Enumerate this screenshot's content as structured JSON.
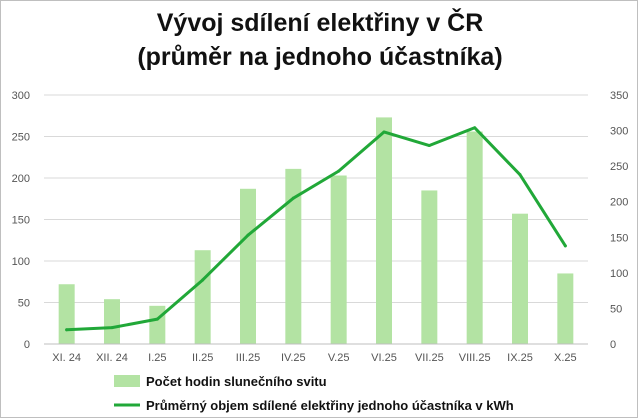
{
  "chart_data": {
    "type": "bar+line",
    "title_line1": "Vývoj sdílení elektřiny v ČR",
    "title_line2": "(průměr na jednoho účastníka)",
    "categories": [
      "XI. 24",
      "XII. 24",
      "I.25",
      "II.25",
      "III.25",
      "IV.25",
      "V.25",
      "VI.25",
      "VII.25",
      "VIII.25",
      "IX.25",
      "X.25"
    ],
    "series": [
      {
        "name": "Počet hodin slunečního svitu",
        "type": "bar",
        "axis": "left",
        "color": "#b3e3a3",
        "values": [
          72,
          54,
          46,
          113,
          187,
          211,
          203,
          273,
          185,
          256,
          157,
          85
        ]
      },
      {
        "name": "Průměrný objem sdílené elektřiny jednoho účastníka v kWh",
        "type": "line",
        "axis": "right",
        "color": "#21a838",
        "values": [
          20,
          23,
          35,
          90,
          153,
          205,
          243,
          298,
          279,
          304,
          238,
          138
        ]
      }
    ],
    "y_left": {
      "min": 0,
      "max": 300,
      "ticks": [
        0,
        50,
        100,
        150,
        200,
        250,
        300
      ]
    },
    "y_right": {
      "min": 0,
      "max": 350,
      "ticks": [
        0,
        50,
        100,
        150,
        200,
        250,
        300,
        350
      ]
    },
    "grid": true,
    "legend_position": "bottom"
  }
}
